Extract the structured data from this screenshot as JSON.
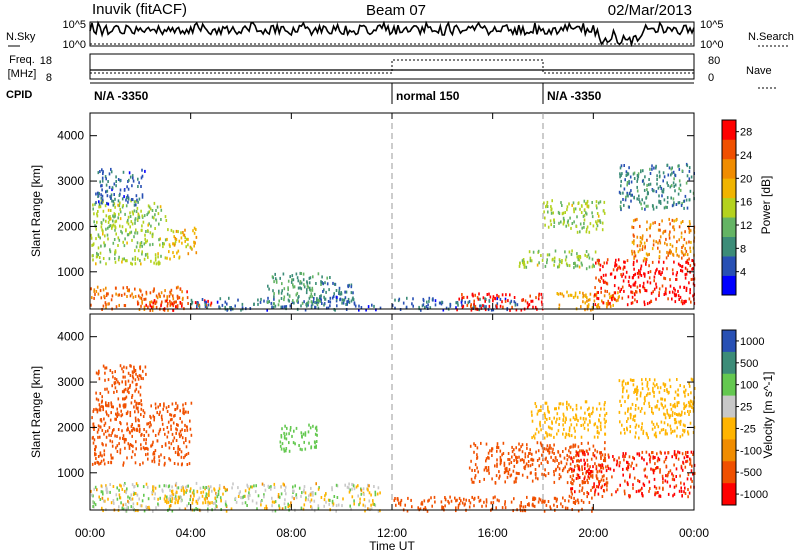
{
  "header": {
    "station": "Inuvik (fitACF)",
    "beam": "Beam 07",
    "date": "02/Mar/2013"
  },
  "noise_panel": {
    "left_label": "N.Sky",
    "left_ticks": [
      "10^5",
      "10^0"
    ],
    "right_label": "N.Search",
    "right_ticks": [
      "10^5",
      "10^0"
    ]
  },
  "freq_panel": {
    "left_label_line1": "Freq.",
    "left_label_line2": "[MHz]",
    "left_ticks": [
      "18",
      "8"
    ],
    "right_label": "Nave",
    "right_ticks": [
      "80",
      "0"
    ]
  },
  "cpid": {
    "label": "CPID",
    "segments": [
      {
        "text": "N/A -3350",
        "start_hour": 0
      },
      {
        "text": "normal 150",
        "start_hour": 12
      },
      {
        "text": "N/A -3350",
        "start_hour": 18
      }
    ]
  },
  "colors": {
    "power_scale": [
      "#0000ff",
      "#2850b4",
      "#3c8c78",
      "#64b464",
      "#b4d21e",
      "#f0b400",
      "#f08c00",
      "#f05000",
      "#ff0000"
    ],
    "velocity_scale": [
      "#2850b4",
      "#3c8c78",
      "#64c850",
      "#c8c8c8",
      "#ffb400",
      "#f08c00",
      "#f05000",
      "#ff0000"
    ]
  },
  "chart_data": [
    {
      "type": "heatmap",
      "panel": "power",
      "xlabel": "",
      "ylabel": "Slant Range [km]",
      "x_range_hours": [
        0,
        24
      ],
      "ylim": [
        180,
        4500
      ],
      "yticks": [
        "1000",
        "2000",
        "3000",
        "4000"
      ],
      "colorbar_label": "Power [dB]",
      "colorbar_ticks": [
        "4",
        "8",
        "12",
        "16",
        "20",
        "24",
        "28"
      ],
      "colorbar_range": [
        0,
        30
      ],
      "cpid_change_hours": [
        12,
        18
      ],
      "echo_regions": [
        {
          "t0": 0.0,
          "t1": 4.0,
          "r0": 180,
          "r1": 700,
          "value": 24
        },
        {
          "t0": 2.2,
          "t1": 4.8,
          "r0": 180,
          "r1": 400,
          "value": 28
        },
        {
          "t0": 4.0,
          "t1": 10.5,
          "r0": 180,
          "r1": 450,
          "value": 6
        },
        {
          "t0": 7.0,
          "t1": 9.5,
          "r0": 300,
          "r1": 1000,
          "value": 10
        },
        {
          "t0": 9.0,
          "t1": 10.5,
          "r0": 300,
          "r1": 800,
          "value": 6
        },
        {
          "t0": 0.0,
          "t1": 3.0,
          "r0": 1200,
          "r1": 2600,
          "value": 14
        },
        {
          "t0": 0.2,
          "t1": 2.2,
          "r0": 2500,
          "r1": 3300,
          "value": 6
        },
        {
          "t0": 3.0,
          "t1": 4.2,
          "r0": 1300,
          "r1": 2000,
          "value": 18
        },
        {
          "t0": 10.5,
          "t1": 12.0,
          "r0": 180,
          "r1": 300,
          "value": 5
        },
        {
          "t0": 12.0,
          "t1": 17.0,
          "r0": 180,
          "r1": 450,
          "value": 6
        },
        {
          "t0": 14.5,
          "t1": 18.0,
          "r0": 180,
          "r1": 550,
          "value": 28
        },
        {
          "t0": 17.0,
          "t1": 20.2,
          "r0": 1100,
          "r1": 1500,
          "value": 14
        },
        {
          "t0": 18.0,
          "t1": 20.5,
          "r0": 1900,
          "r1": 2600,
          "value": 14
        },
        {
          "t0": 18.5,
          "t1": 21.0,
          "r0": 180,
          "r1": 600,
          "value": 20
        },
        {
          "t0": 20.0,
          "t1": 24.0,
          "r0": 300,
          "r1": 1300,
          "value": 28
        },
        {
          "t0": 21.5,
          "t1": 24.0,
          "r0": 1300,
          "r1": 2200,
          "value": 22
        },
        {
          "t0": 21.0,
          "t1": 24.0,
          "r0": 2400,
          "r1": 3400,
          "value": 8
        }
      ]
    },
    {
      "type": "heatmap",
      "panel": "velocity",
      "xlabel": "Time UT",
      "ylabel": "Slant Range [km]",
      "x_range_hours": [
        0,
        24
      ],
      "xticks": [
        "00:00",
        "04:00",
        "08:00",
        "12:00",
        "16:00",
        "20:00",
        "00:00"
      ],
      "ylim": [
        180,
        4500
      ],
      "yticks": [
        "1000",
        "2000",
        "3000",
        "4000"
      ],
      "colorbar_label": "Velocity [m s^-1]",
      "colorbar_ticks": [
        "1000",
        "500",
        "100",
        "25",
        "-25",
        "-100",
        "-500",
        "-1000"
      ],
      "cpid_change_hours": [
        12,
        18
      ],
      "echo_regions": [
        {
          "t0": 0.0,
          "t1": 4.0,
          "r0": 1200,
          "r1": 2600,
          "value": -300
        },
        {
          "t0": 0.2,
          "t1": 2.2,
          "r0": 2500,
          "r1": 3400,
          "value": -300
        },
        {
          "t0": 0.0,
          "t1": 11.5,
          "r0": 180,
          "r1": 800,
          "value": 60
        },
        {
          "t0": 3.0,
          "t1": 5.0,
          "r0": 350,
          "r1": 700,
          "value": 0
        },
        {
          "t0": 7.5,
          "t1": 9.0,
          "r0": 1500,
          "r1": 2100,
          "value": 400
        },
        {
          "t0": 12.0,
          "t1": 20.0,
          "r0": 180,
          "r1": 500,
          "value": -300
        },
        {
          "t0": 15.0,
          "t1": 20.5,
          "r0": 800,
          "r1": 1700,
          "value": -300
        },
        {
          "t0": 17.5,
          "t1": 20.5,
          "r0": 1800,
          "r1": 2600,
          "value": 0
        },
        {
          "t0": 19.0,
          "t1": 24.0,
          "r0": 500,
          "r1": 1500,
          "value": -500
        },
        {
          "t0": 21.0,
          "t1": 24.0,
          "r0": 1800,
          "r1": 3100,
          "value": 0
        }
      ]
    }
  ]
}
